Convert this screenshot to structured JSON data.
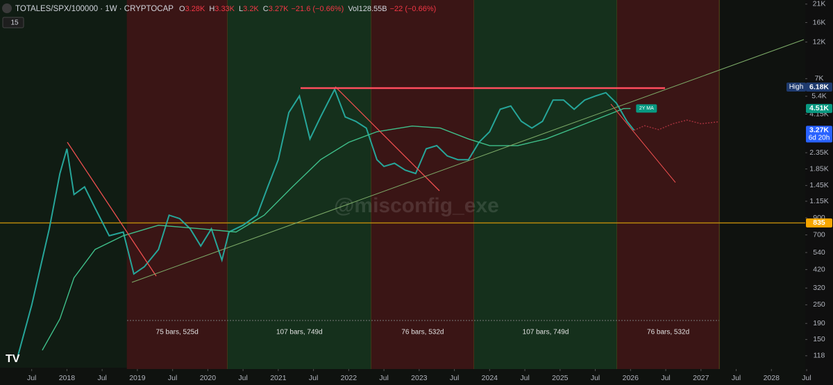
{
  "chart_data": {
    "type": "line",
    "title": "TOTALES/SPX/100000 · 1W · CRYPTOCAP",
    "ohlc": [
      {
        "key": "O",
        "text": "3.28K"
      },
      {
        "key": "H",
        "text": "3.33K"
      },
      {
        "key": "L",
        "text": "3.2K"
      },
      {
        "key": "C",
        "text": "3.27K"
      },
      {
        "key": "",
        "text": "−21.6 (−0.66%)"
      },
      {
        "key": "Vol",
        "text": "128.55B"
      },
      {
        "key": "",
        "text": "−22 (−0.66%)"
      }
    ],
    "indicator_badge": "15",
    "watermark": "@misconfig_exe",
    "log_scale": true,
    "xlim": [
      2017.05,
      2028.48
    ],
    "ylim": [
      97,
      22300
    ],
    "xticks": [
      {
        "value": 2017.5,
        "label": "Jul"
      },
      {
        "value": 2018,
        "label": "2018"
      },
      {
        "value": 2018.5,
        "label": "Jul"
      },
      {
        "value": 2019,
        "label": "2019"
      },
      {
        "value": 2019.5,
        "label": "Jul"
      },
      {
        "value": 2020,
        "label": "2020"
      },
      {
        "value": 2020.5,
        "label": "Jul"
      },
      {
        "value": 2021,
        "label": "2021"
      },
      {
        "value": 2021.5,
        "label": "Jul"
      },
      {
        "value": 2022,
        "label": "2022"
      },
      {
        "value": 2022.5,
        "label": "Jul"
      },
      {
        "value": 2023,
        "label": "2023"
      },
      {
        "value": 2023.5,
        "label": "Jul"
      },
      {
        "value": 2024,
        "label": "2024"
      },
      {
        "value": 2024.5,
        "label": "Jul"
      },
      {
        "value": 2025,
        "label": "2025"
      },
      {
        "value": 2025.5,
        "label": "Jul"
      },
      {
        "value": 2026,
        "label": "2026"
      },
      {
        "value": 2026.5,
        "label": "Jul"
      },
      {
        "value": 2027,
        "label": "2027"
      },
      {
        "value": 2027.5,
        "label": "Jul"
      },
      {
        "value": 2028,
        "label": "2028"
      },
      {
        "value": 2028.5,
        "label": "Jul"
      }
    ],
    "yticks": [
      {
        "value": 21000,
        "label": "21K"
      },
      {
        "value": 16000,
        "label": "16K"
      },
      {
        "value": 12000,
        "label": "12K"
      },
      {
        "value": 7000,
        "label": "7K"
      },
      {
        "value": 5400,
        "label": "5.4K"
      },
      {
        "value": 4150,
        "label": "4.15K"
      },
      {
        "value": 2350,
        "label": "2.35K"
      },
      {
        "value": 1850,
        "label": "1.85K"
      },
      {
        "value": 1450,
        "label": "1.45K"
      },
      {
        "value": 1150,
        "label": "1.15K"
      },
      900,
      700,
      540,
      420,
      320,
      250,
      190,
      150,
      118
    ],
    "series": [
      {
        "color": "#26a69a",
        "x": [
          2017.3,
          2017.5,
          2017.75,
          2017.9,
          2018.0,
          2018.1,
          2018.25,
          2018.4,
          2018.6,
          2018.8,
          2018.95,
          2019.1,
          2019.3,
          2019.45,
          2019.6,
          2019.75,
          2019.9,
          2020.05,
          2020.2,
          2020.3,
          2020.5,
          2020.7,
          2020.85,
          2021.0,
          2021.15,
          2021.3,
          2021.45,
          2021.6,
          2021.8,
          2021.95,
          2022.1,
          2022.25,
          2022.4,
          2022.5,
          2022.65,
          2022.8,
          2022.95,
          2023.1,
          2023.25,
          2023.4,
          2023.55,
          2023.7,
          2023.85,
          2024.0,
          2024.15,
          2024.3,
          2024.45,
          2024.6,
          2024.75,
          2024.9,
          2025.05,
          2025.2,
          2025.35,
          2025.5,
          2025.65,
          2025.8,
          2025.95,
          2026.05
        ],
        "values": [
          116,
          249,
          766,
          1730,
          2490,
          1270,
          1420,
          1040,
          692,
          730,
          394,
          438,
          565,
          936,
          890,
          766,
          594,
          766,
          483,
          730,
          807,
          936,
          1420,
          2120,
          4250,
          5420,
          2880,
          3980,
          5980,
          3980,
          3730,
          3380,
          2120,
          1920,
          2010,
          1820,
          1730,
          2490,
          2610,
          2240,
          2120,
          2120,
          2740,
          3200,
          4460,
          4680,
          3730,
          3380,
          3730,
          5110,
          5110,
          4460,
          5110,
          5420,
          5690,
          4880,
          3730,
          3270
        ]
      },
      {
        "name": "2Y MA",
        "color": "#3fbf8a",
        "x": [
          2017.65,
          2017.9,
          2018.1,
          2018.4,
          2018.8,
          2019.3,
          2019.9,
          2020.4,
          2020.8,
          2021.2,
          2021.6,
          2022.0,
          2022.4,
          2022.9,
          2023.3,
          2023.7,
          2024.0,
          2024.4,
          2024.8,
          2025.2,
          2025.6,
          2025.9,
          2026.0
        ],
        "values": [
          128,
          203,
          372,
          565,
          692,
          807,
          766,
          730,
          936,
          1420,
          2120,
          2740,
          3200,
          3480,
          3380,
          2880,
          2610,
          2610,
          2880,
          3380,
          3980,
          4500,
          4510
        ]
      },
      {
        "color": "#a8323e",
        "dashed": true,
        "x": [
          2026.05,
          2026.2,
          2026.4,
          2026.6,
          2026.8,
          2027.0,
          2027.24
        ],
        "values": [
          3270,
          3500,
          3300,
          3600,
          3800,
          3600,
          3700
        ]
      }
    ],
    "price_labels": [
      {
        "value": 6180,
        "tag": "High",
        "label": "6.18K",
        "color": "#1e3a6e"
      },
      {
        "value": 4510,
        "label": "4.51K",
        "color": "#089981"
      },
      {
        "value": 3270,
        "label": "3.27K",
        "sub": "6d 20h",
        "color": "#2962ff"
      },
      {
        "value": 835,
        "label": "835",
        "color": "#f7a600"
      }
    ],
    "levels": [
      {
        "value": 835,
        "color": "#b8860b"
      }
    ],
    "ranges": [
      {
        "start": 2018.85,
        "end": 2020.28,
        "label": "75 bars, 525d",
        "color": "#3a1515"
      },
      {
        "start": 2020.28,
        "end": 2022.32,
        "label": "107 bars, 749d",
        "color": "#15301c"
      },
      {
        "start": 2022.32,
        "end": 2023.78,
        "label": "76 bars, 532d",
        "color": "#3a1515"
      },
      {
        "start": 2023.78,
        "end": 2025.81,
        "label": "107 bars, 749d",
        "color": "#15301c"
      },
      {
        "start": 2025.81,
        "end": 2027.26,
        "label": "76 bars, 532d",
        "color": "#3a1515"
      }
    ]
  }
}
